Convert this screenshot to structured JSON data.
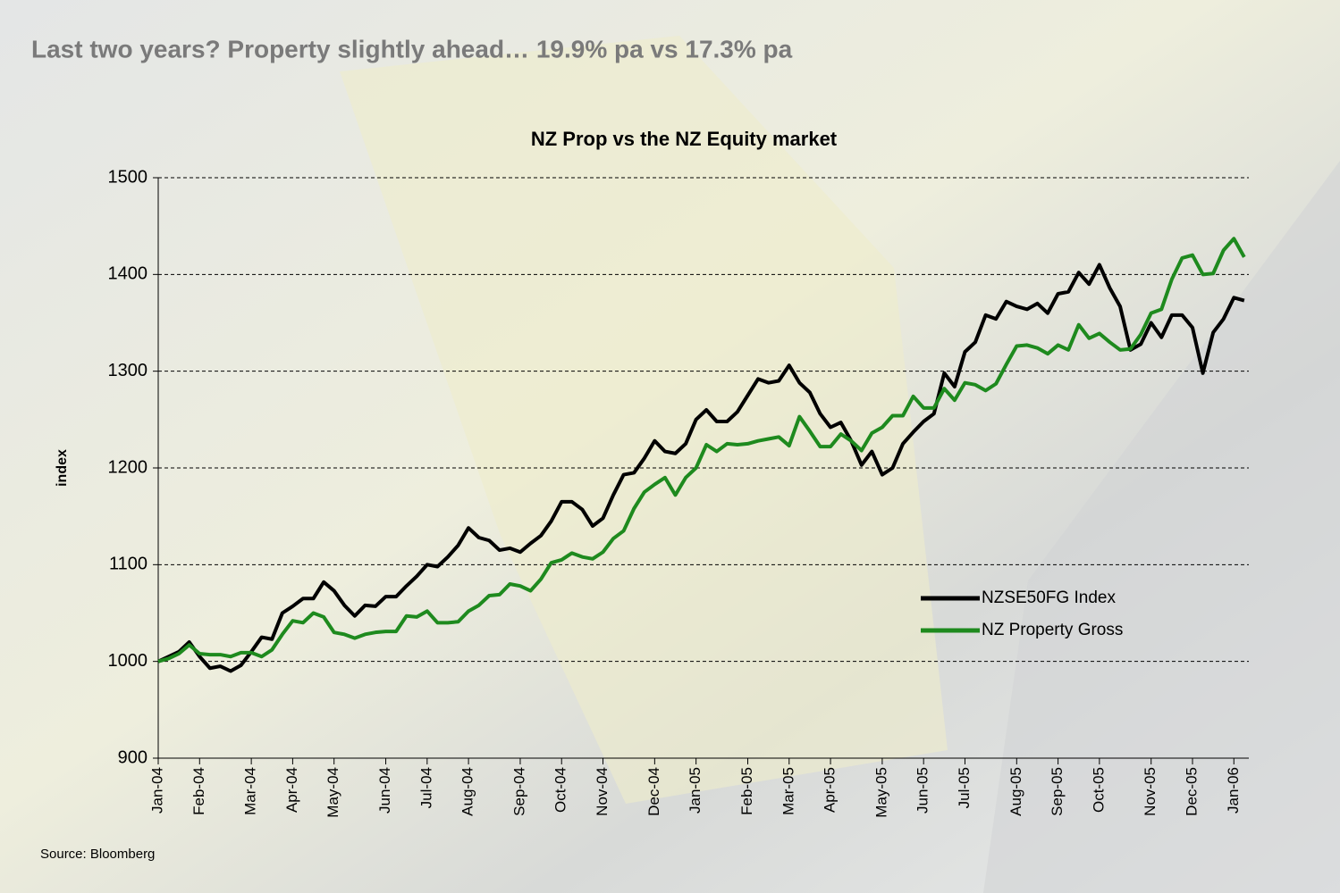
{
  "headline": "Last two years?  Property slightly ahead… 19.9% pa vs 17.3% pa",
  "source": "Source: Bloomberg",
  "chart_data": {
    "type": "line",
    "title": "NZ Prop vs the NZ Equity market",
    "ylabel": "index",
    "categories": [
      "Jan-04",
      null,
      null,
      null,
      "Feb-04",
      null,
      null,
      null,
      null,
      "Mar-04",
      null,
      null,
      null,
      "Apr-04",
      null,
      null,
      null,
      "May-04",
      null,
      null,
      null,
      null,
      "Jun-04",
      null,
      null,
      null,
      "Jul-04",
      null,
      null,
      null,
      "Aug-04",
      null,
      null,
      null,
      null,
      "Sep-04",
      null,
      null,
      null,
      "Oct-04",
      null,
      null,
      null,
      "Nov-04",
      null,
      null,
      null,
      null,
      "Dec-04",
      null,
      null,
      null,
      "Jan-05",
      null,
      null,
      null,
      null,
      "Feb-05",
      null,
      null,
      null,
      "Mar-05",
      null,
      null,
      null,
      "Apr-05",
      null,
      null,
      null,
      null,
      "May-05",
      null,
      null,
      null,
      "Jun-05",
      null,
      null,
      null,
      "Jul-05",
      null,
      null,
      null,
      null,
      "Aug-05",
      null,
      null,
      null,
      "Sep-05",
      null,
      null,
      null,
      "Oct-05",
      null,
      null,
      null,
      null,
      "Nov-05",
      null,
      null,
      null,
      "Dec-05",
      null,
      null,
      null,
      "Jan-06",
      null
    ],
    "series": [
      {
        "name": "NZSE50FG Index",
        "color": "#000000",
        "values": [
          1000,
          1005,
          1010,
          1020,
          1005,
          993,
          995,
          990,
          996,
          1010,
          1025,
          1023,
          1050,
          1057,
          1065,
          1065,
          1082,
          1073,
          1058,
          1047,
          1058,
          1057,
          1067,
          1067,
          1078,
          1088,
          1100,
          1098,
          1108,
          1120,
          1138,
          1128,
          1125,
          1115,
          1117,
          1113,
          1122,
          1130,
          1145,
          1165,
          1165,
          1157,
          1140,
          1148,
          1172,
          1193,
          1195,
          1210,
          1228,
          1217,
          1215,
          1225,
          1250,
          1260,
          1248,
          1248,
          1258,
          1275,
          1292,
          1288,
          1290,
          1306,
          1288,
          1278,
          1256,
          1242,
          1247,
          1228,
          1203,
          1217,
          1193,
          1200,
          1225,
          1237,
          1248,
          1256,
          1298,
          1284,
          1320,
          1330,
          1358,
          1354,
          1372,
          1367,
          1364,
          1370,
          1360,
          1380,
          1382,
          1402,
          1390,
          1410,
          1386,
          1367,
          1322,
          1328,
          1350,
          1335,
          1358,
          1358,
          1345,
          1298,
          1340,
          1354,
          1376,
          1373
        ]
      },
      {
        "name": "NZ Property Gross",
        "color": "#1e8a1e",
        "values": [
          1000,
          1003,
          1008,
          1017,
          1008,
          1007,
          1007,
          1005,
          1009,
          1009,
          1005,
          1012,
          1028,
          1042,
          1040,
          1050,
          1046,
          1030,
          1028,
          1024,
          1028,
          1030,
          1031,
          1031,
          1047,
          1046,
          1052,
          1040,
          1040,
          1041,
          1052,
          1058,
          1068,
          1069,
          1080,
          1078,
          1073,
          1085,
          1102,
          1105,
          1112,
          1108,
          1106,
          1113,
          1127,
          1135,
          1158,
          1175,
          1183,
          1190,
          1172,
          1190,
          1200,
          1224,
          1217,
          1225,
          1224,
          1225,
          1228,
          1230,
          1232,
          1223,
          1253,
          1238,
          1222,
          1222,
          1235,
          1228,
          1218,
          1236,
          1242,
          1254,
          1254,
          1274,
          1262,
          1262,
          1282,
          1270,
          1288,
          1286,
          1280,
          1287,
          1307,
          1326,
          1327,
          1324,
          1318,
          1327,
          1322,
          1348,
          1334,
          1339,
          1330,
          1322,
          1323,
          1338,
          1360,
          1364,
          1395,
          1417,
          1420,
          1400,
          1401,
          1425,
          1437,
          1418
        ]
      }
    ],
    "ylim": [
      900,
      1500
    ],
    "yticks": [
      900,
      1000,
      1100,
      1200,
      1300,
      1400,
      1500
    ],
    "grid": true,
    "legend": "right"
  }
}
